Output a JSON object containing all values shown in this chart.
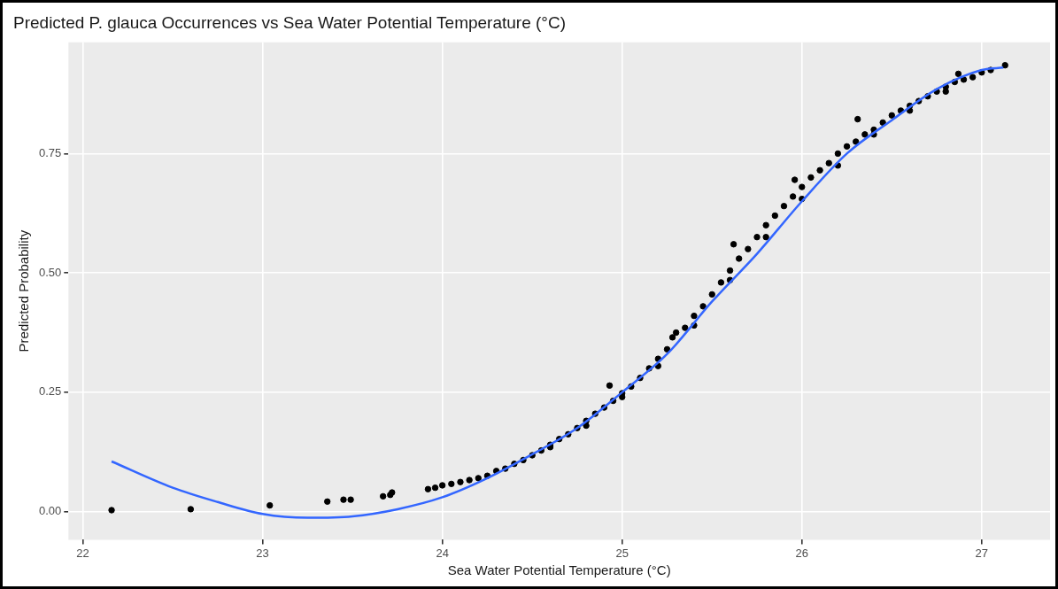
{
  "chart_data": {
    "type": "scatter",
    "title": "Predicted P. glauca Occurrences vs Sea Water Potential Temperature (°C)",
    "xlabel": "Sea Water Potential Temperature (°C)",
    "ylabel": "Predicted Probability",
    "xlim": [
      21.92,
      27.38
    ],
    "ylim": [
      -0.059,
      0.983
    ],
    "xticks": [
      22,
      23,
      24,
      25,
      26,
      27
    ],
    "yticks": [
      {
        "value": 0,
        "label": "0.00"
      },
      {
        "value": 0.25,
        "label": "0.25"
      },
      {
        "value": 0.5,
        "label": "0.50"
      },
      {
        "value": 0.75,
        "label": "0.75"
      }
    ],
    "grid": true,
    "legend": false,
    "series": [
      {
        "type": "scatter",
        "color": "#000000",
        "marker": "circle",
        "x": [
          22.16,
          22.6,
          23.04,
          23.36,
          23.45,
          23.49,
          23.67,
          23.71,
          23.72,
          23.92,
          23.96,
          24.0,
          24.05,
          24.1,
          24.15,
          24.2,
          24.25,
          24.3,
          24.35,
          24.4,
          24.45,
          24.5,
          24.55,
          24.6,
          24.65,
          24.7,
          24.75,
          24.8,
          24.85,
          24.9,
          24.93,
          24.95,
          25.0,
          25.05,
          25.1,
          25.15,
          25.2,
          25.25,
          25.28,
          25.3,
          25.35,
          25.4,
          25.45,
          25.5,
          25.55,
          25.6,
          25.62,
          25.65,
          25.7,
          25.75,
          25.8,
          25.85,
          25.9,
          25.95,
          25.96,
          26.0,
          26.05,
          26.1,
          26.15,
          26.2,
          26.25,
          26.3,
          26.31,
          26.35,
          26.4,
          26.45,
          26.5,
          26.55,
          26.6,
          26.65,
          26.7,
          26.75,
          26.8,
          26.85,
          26.87,
          26.9,
          26.95,
          27.0,
          27.05,
          27.13,
          24.6,
          24.8,
          25.0,
          25.2,
          25.4,
          25.6,
          25.8,
          26.0,
          26.2,
          26.4,
          26.6,
          26.8
        ],
        "values": [
          0.003,
          0.005,
          0.013,
          0.021,
          0.025,
          0.025,
          0.032,
          0.035,
          0.04,
          0.047,
          0.05,
          0.055,
          0.058,
          0.062,
          0.066,
          0.07,
          0.075,
          0.085,
          0.09,
          0.1,
          0.108,
          0.118,
          0.128,
          0.14,
          0.152,
          0.162,
          0.175,
          0.19,
          0.205,
          0.218,
          0.264,
          0.232,
          0.248,
          0.262,
          0.28,
          0.3,
          0.32,
          0.34,
          0.365,
          0.375,
          0.385,
          0.41,
          0.43,
          0.455,
          0.48,
          0.505,
          0.56,
          0.53,
          0.55,
          0.575,
          0.6,
          0.62,
          0.64,
          0.66,
          0.695,
          0.68,
          0.7,
          0.715,
          0.73,
          0.75,
          0.765,
          0.775,
          0.822,
          0.79,
          0.8,
          0.815,
          0.83,
          0.84,
          0.85,
          0.86,
          0.87,
          0.88,
          0.89,
          0.9,
          0.917,
          0.905,
          0.91,
          0.92,
          0.925,
          0.935,
          0.135,
          0.18,
          0.24,
          0.305,
          0.39,
          0.485,
          0.575,
          0.655,
          0.725,
          0.79,
          0.84,
          0.88
        ]
      },
      {
        "type": "line",
        "color": "#3366ff",
        "marker": "none",
        "line_style": "solid",
        "x": [
          22.16,
          22.5,
          22.75,
          23.0,
          23.25,
          23.5,
          23.75,
          24.0,
          24.25,
          24.5,
          24.75,
          25.0,
          25.25,
          25.5,
          25.75,
          26.0,
          26.25,
          26.5,
          26.75,
          27.0,
          27.12
        ],
        "values": [
          0.105,
          0.05,
          0.02,
          -0.005,
          -0.013,
          -0.01,
          0.005,
          0.03,
          0.07,
          0.12,
          0.175,
          0.25,
          0.33,
          0.44,
          0.54,
          0.65,
          0.75,
          0.82,
          0.885,
          0.925,
          0.93
        ]
      }
    ]
  }
}
